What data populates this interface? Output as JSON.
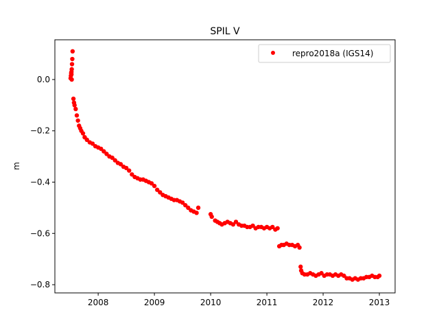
{
  "chart_data": {
    "type": "scatter",
    "title": "SPIL V",
    "xlabel": "",
    "ylabel": "m",
    "xlim": [
      2007.23,
      2013.28
    ],
    "ylim": [
      -0.832,
      0.155
    ],
    "xticks": [
      2008,
      2009,
      2010,
      2011,
      2012,
      2013
    ],
    "xtick_labels": [
      "2008",
      "2009",
      "2010",
      "2011",
      "2012",
      "2013"
    ],
    "yticks": [
      0.0,
      -0.2,
      -0.4,
      -0.6,
      -0.8
    ],
    "ytick_labels": [
      "0.0",
      "−0.2",
      "−0.4",
      "−0.6",
      "−0.8"
    ],
    "grid": false,
    "legend_position": "top-right",
    "series": [
      {
        "name": "repro2018a (IGS14)",
        "color": "#ff0000",
        "marker": "dot",
        "points": [
          [
            2007.51,
            0.005
          ],
          [
            2007.515,
            0.015
          ],
          [
            2007.52,
            0.025
          ],
          [
            2007.525,
            0.03
          ],
          [
            2007.53,
            0.04
          ],
          [
            2007.535,
            0.06
          ],
          [
            2007.54,
            0.08
          ],
          [
            2007.545,
            0.11
          ],
          [
            2007.53,
            0.0
          ],
          [
            2007.525,
            0.02
          ],
          [
            2007.56,
            -0.075
          ],
          [
            2007.57,
            -0.09
          ],
          [
            2007.58,
            -0.1
          ],
          [
            2007.6,
            -0.115
          ],
          [
            2007.62,
            -0.14
          ],
          [
            2007.64,
            -0.16
          ],
          [
            2007.66,
            -0.18
          ],
          [
            2007.68,
            -0.19
          ],
          [
            2007.7,
            -0.2
          ],
          [
            2007.73,
            -0.21
          ],
          [
            2007.76,
            -0.225
          ],
          [
            2007.8,
            -0.235
          ],
          [
            2007.85,
            -0.245
          ],
          [
            2007.9,
            -0.25
          ],
          [
            2007.95,
            -0.26
          ],
          [
            2008.0,
            -0.265
          ],
          [
            2008.05,
            -0.27
          ],
          [
            2008.1,
            -0.28
          ],
          [
            2008.15,
            -0.29
          ],
          [
            2008.2,
            -0.3
          ],
          [
            2008.25,
            -0.305
          ],
          [
            2008.3,
            -0.315
          ],
          [
            2008.35,
            -0.325
          ],
          [
            2008.4,
            -0.33
          ],
          [
            2008.45,
            -0.34
          ],
          [
            2008.5,
            -0.345
          ],
          [
            2008.55,
            -0.355
          ],
          [
            2008.6,
            -0.37
          ],
          [
            2008.65,
            -0.38
          ],
          [
            2008.7,
            -0.385
          ],
          [
            2008.75,
            -0.39
          ],
          [
            2008.8,
            -0.39
          ],
          [
            2008.85,
            -0.395
          ],
          [
            2008.9,
            -0.4
          ],
          [
            2008.95,
            -0.405
          ],
          [
            2009.0,
            -0.415
          ],
          [
            2009.05,
            -0.43
          ],
          [
            2009.1,
            -0.44
          ],
          [
            2009.15,
            -0.45
          ],
          [
            2009.2,
            -0.455
          ],
          [
            2009.25,
            -0.46
          ],
          [
            2009.3,
            -0.465
          ],
          [
            2009.35,
            -0.47
          ],
          [
            2009.4,
            -0.47
          ],
          [
            2009.45,
            -0.475
          ],
          [
            2009.5,
            -0.48
          ],
          [
            2009.55,
            -0.49
          ],
          [
            2009.6,
            -0.5
          ],
          [
            2009.65,
            -0.51
          ],
          [
            2009.7,
            -0.515
          ],
          [
            2009.75,
            -0.52
          ],
          [
            2009.78,
            -0.5
          ],
          [
            2010.0,
            -0.525
          ],
          [
            2010.02,
            -0.535
          ],
          [
            2010.08,
            -0.55
          ],
          [
            2010.12,
            -0.555
          ],
          [
            2010.16,
            -0.56
          ],
          [
            2010.2,
            -0.565
          ],
          [
            2010.25,
            -0.56
          ],
          [
            2010.3,
            -0.555
          ],
          [
            2010.35,
            -0.56
          ],
          [
            2010.4,
            -0.565
          ],
          [
            2010.45,
            -0.555
          ],
          [
            2010.5,
            -0.565
          ],
          [
            2010.55,
            -0.57
          ],
          [
            2010.6,
            -0.57
          ],
          [
            2010.65,
            -0.575
          ],
          [
            2010.7,
            -0.575
          ],
          [
            2010.75,
            -0.57
          ],
          [
            2010.8,
            -0.58
          ],
          [
            2010.85,
            -0.575
          ],
          [
            2010.9,
            -0.575
          ],
          [
            2010.95,
            -0.58
          ],
          [
            2011.0,
            -0.575
          ],
          [
            2011.05,
            -0.58
          ],
          [
            2011.1,
            -0.575
          ],
          [
            2011.15,
            -0.585
          ],
          [
            2011.19,
            -0.58
          ],
          [
            2011.22,
            -0.65
          ],
          [
            2011.26,
            -0.645
          ],
          [
            2011.3,
            -0.645
          ],
          [
            2011.35,
            -0.64
          ],
          [
            2011.4,
            -0.645
          ],
          [
            2011.45,
            -0.645
          ],
          [
            2011.5,
            -0.65
          ],
          [
            2011.55,
            -0.645
          ],
          [
            2011.58,
            -0.655
          ],
          [
            2011.6,
            -0.73
          ],
          [
            2011.61,
            -0.745
          ],
          [
            2011.63,
            -0.755
          ],
          [
            2011.67,
            -0.76
          ],
          [
            2011.72,
            -0.76
          ],
          [
            2011.77,
            -0.755
          ],
          [
            2011.82,
            -0.76
          ],
          [
            2011.87,
            -0.765
          ],
          [
            2011.92,
            -0.76
          ],
          [
            2011.97,
            -0.755
          ],
          [
            2012.02,
            -0.765
          ],
          [
            2012.07,
            -0.76
          ],
          [
            2012.12,
            -0.76
          ],
          [
            2012.17,
            -0.765
          ],
          [
            2012.22,
            -0.76
          ],
          [
            2012.27,
            -0.765
          ],
          [
            2012.32,
            -0.76
          ],
          [
            2012.37,
            -0.765
          ],
          [
            2012.42,
            -0.775
          ],
          [
            2012.47,
            -0.775
          ],
          [
            2012.52,
            -0.78
          ],
          [
            2012.57,
            -0.775
          ],
          [
            2012.62,
            -0.78
          ],
          [
            2012.67,
            -0.775
          ],
          [
            2012.72,
            -0.775
          ],
          [
            2012.77,
            -0.77
          ],
          [
            2012.82,
            -0.77
          ],
          [
            2012.87,
            -0.765
          ],
          [
            2012.92,
            -0.77
          ],
          [
            2012.97,
            -0.77
          ],
          [
            2013.0,
            -0.765
          ]
        ]
      }
    ]
  }
}
